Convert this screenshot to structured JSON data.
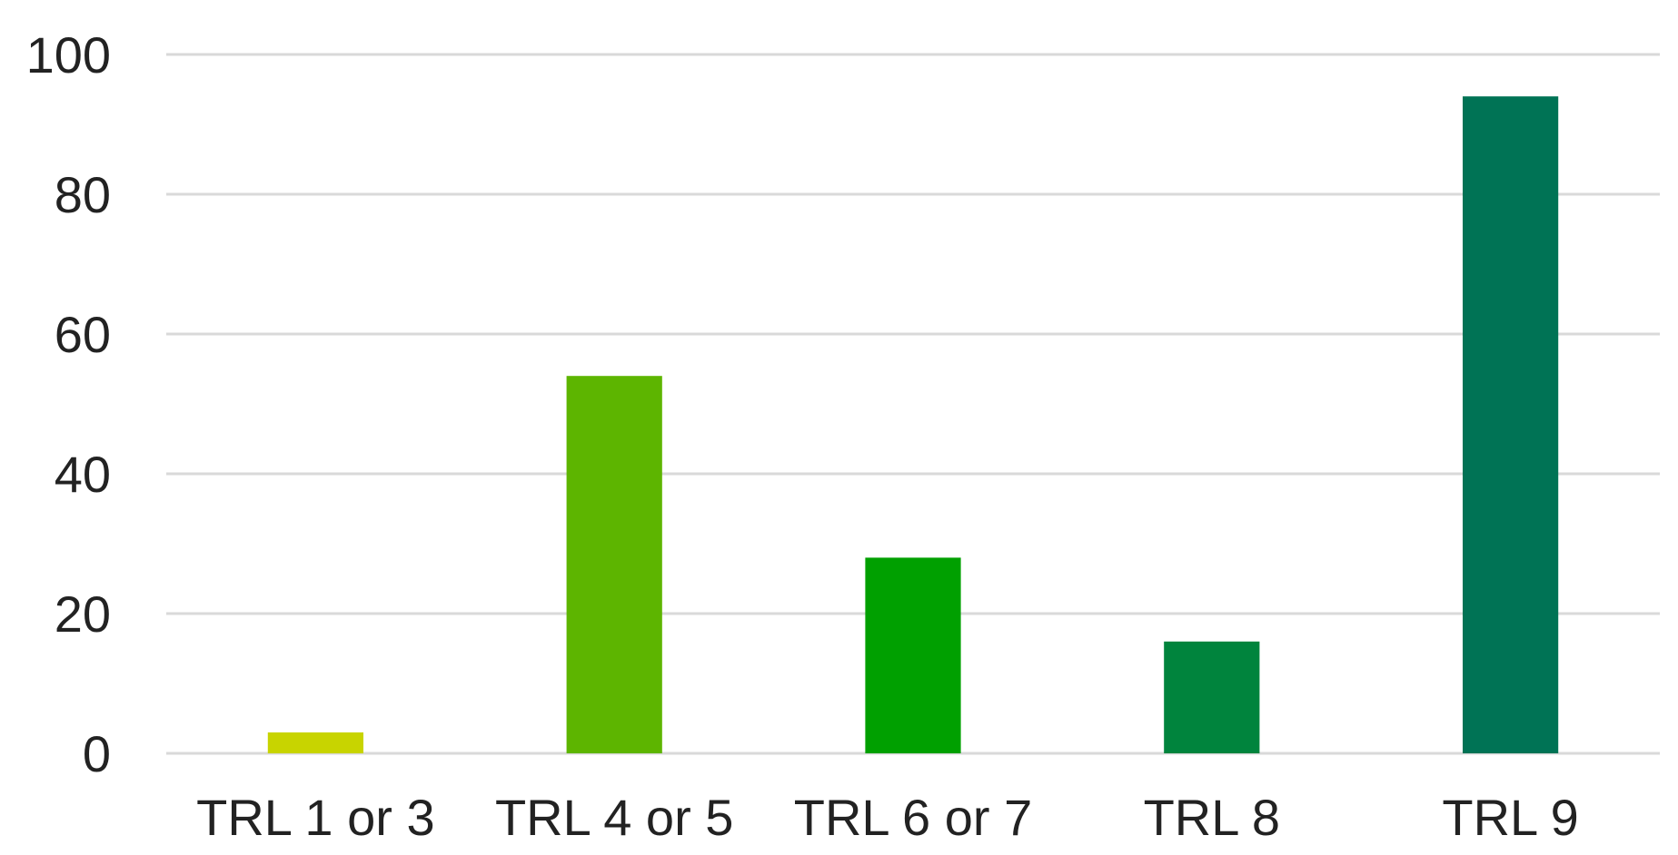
{
  "chart_data": {
    "type": "bar",
    "categories": [
      "TRL 1 or 3",
      "TRL 4 or 5",
      "TRL 6 or 7",
      "TRL 8",
      "TRL 9"
    ],
    "values": [
      3,
      54,
      28,
      16,
      94
    ],
    "colors": [
      "#c8d400",
      "#5db500",
      "#00a000",
      "#00843d",
      "#007355"
    ],
    "ylim": [
      0,
      100
    ],
    "yticks": [
      0,
      20,
      40,
      60,
      80,
      100
    ],
    "grid": true,
    "legend": "none",
    "title": "",
    "xlabel": "",
    "ylabel": ""
  }
}
